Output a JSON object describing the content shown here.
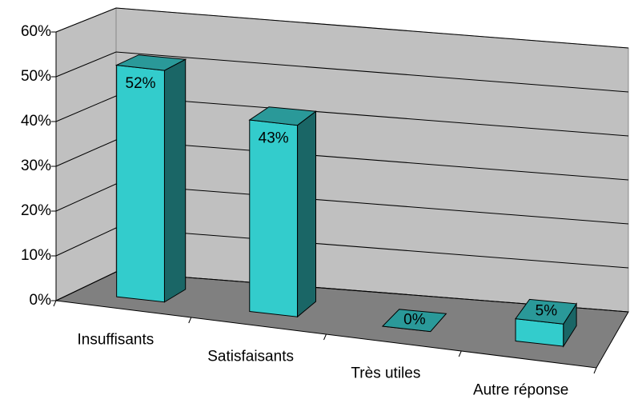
{
  "chart_data": {
    "type": "bar3d",
    "categories": [
      "Insuffisants",
      "Satisfaisants",
      "Très utiles",
      "Autre réponse"
    ],
    "values": [
      52,
      43,
      0,
      5
    ],
    "value_labels": [
      "52%",
      "43%",
      "0%",
      "5%"
    ],
    "color": "#33cccc",
    "ylim": [
      0,
      60
    ],
    "yticks": [
      {
        "value": 0,
        "label": "0%"
      },
      {
        "value": 10,
        "label": "10%"
      },
      {
        "value": 20,
        "label": "20%"
      },
      {
        "value": 30,
        "label": "30%"
      },
      {
        "value": 40,
        "label": "40%"
      },
      {
        "value": 50,
        "label": "50%"
      },
      {
        "value": 60,
        "label": "60%"
      }
    ],
    "grid": true
  }
}
